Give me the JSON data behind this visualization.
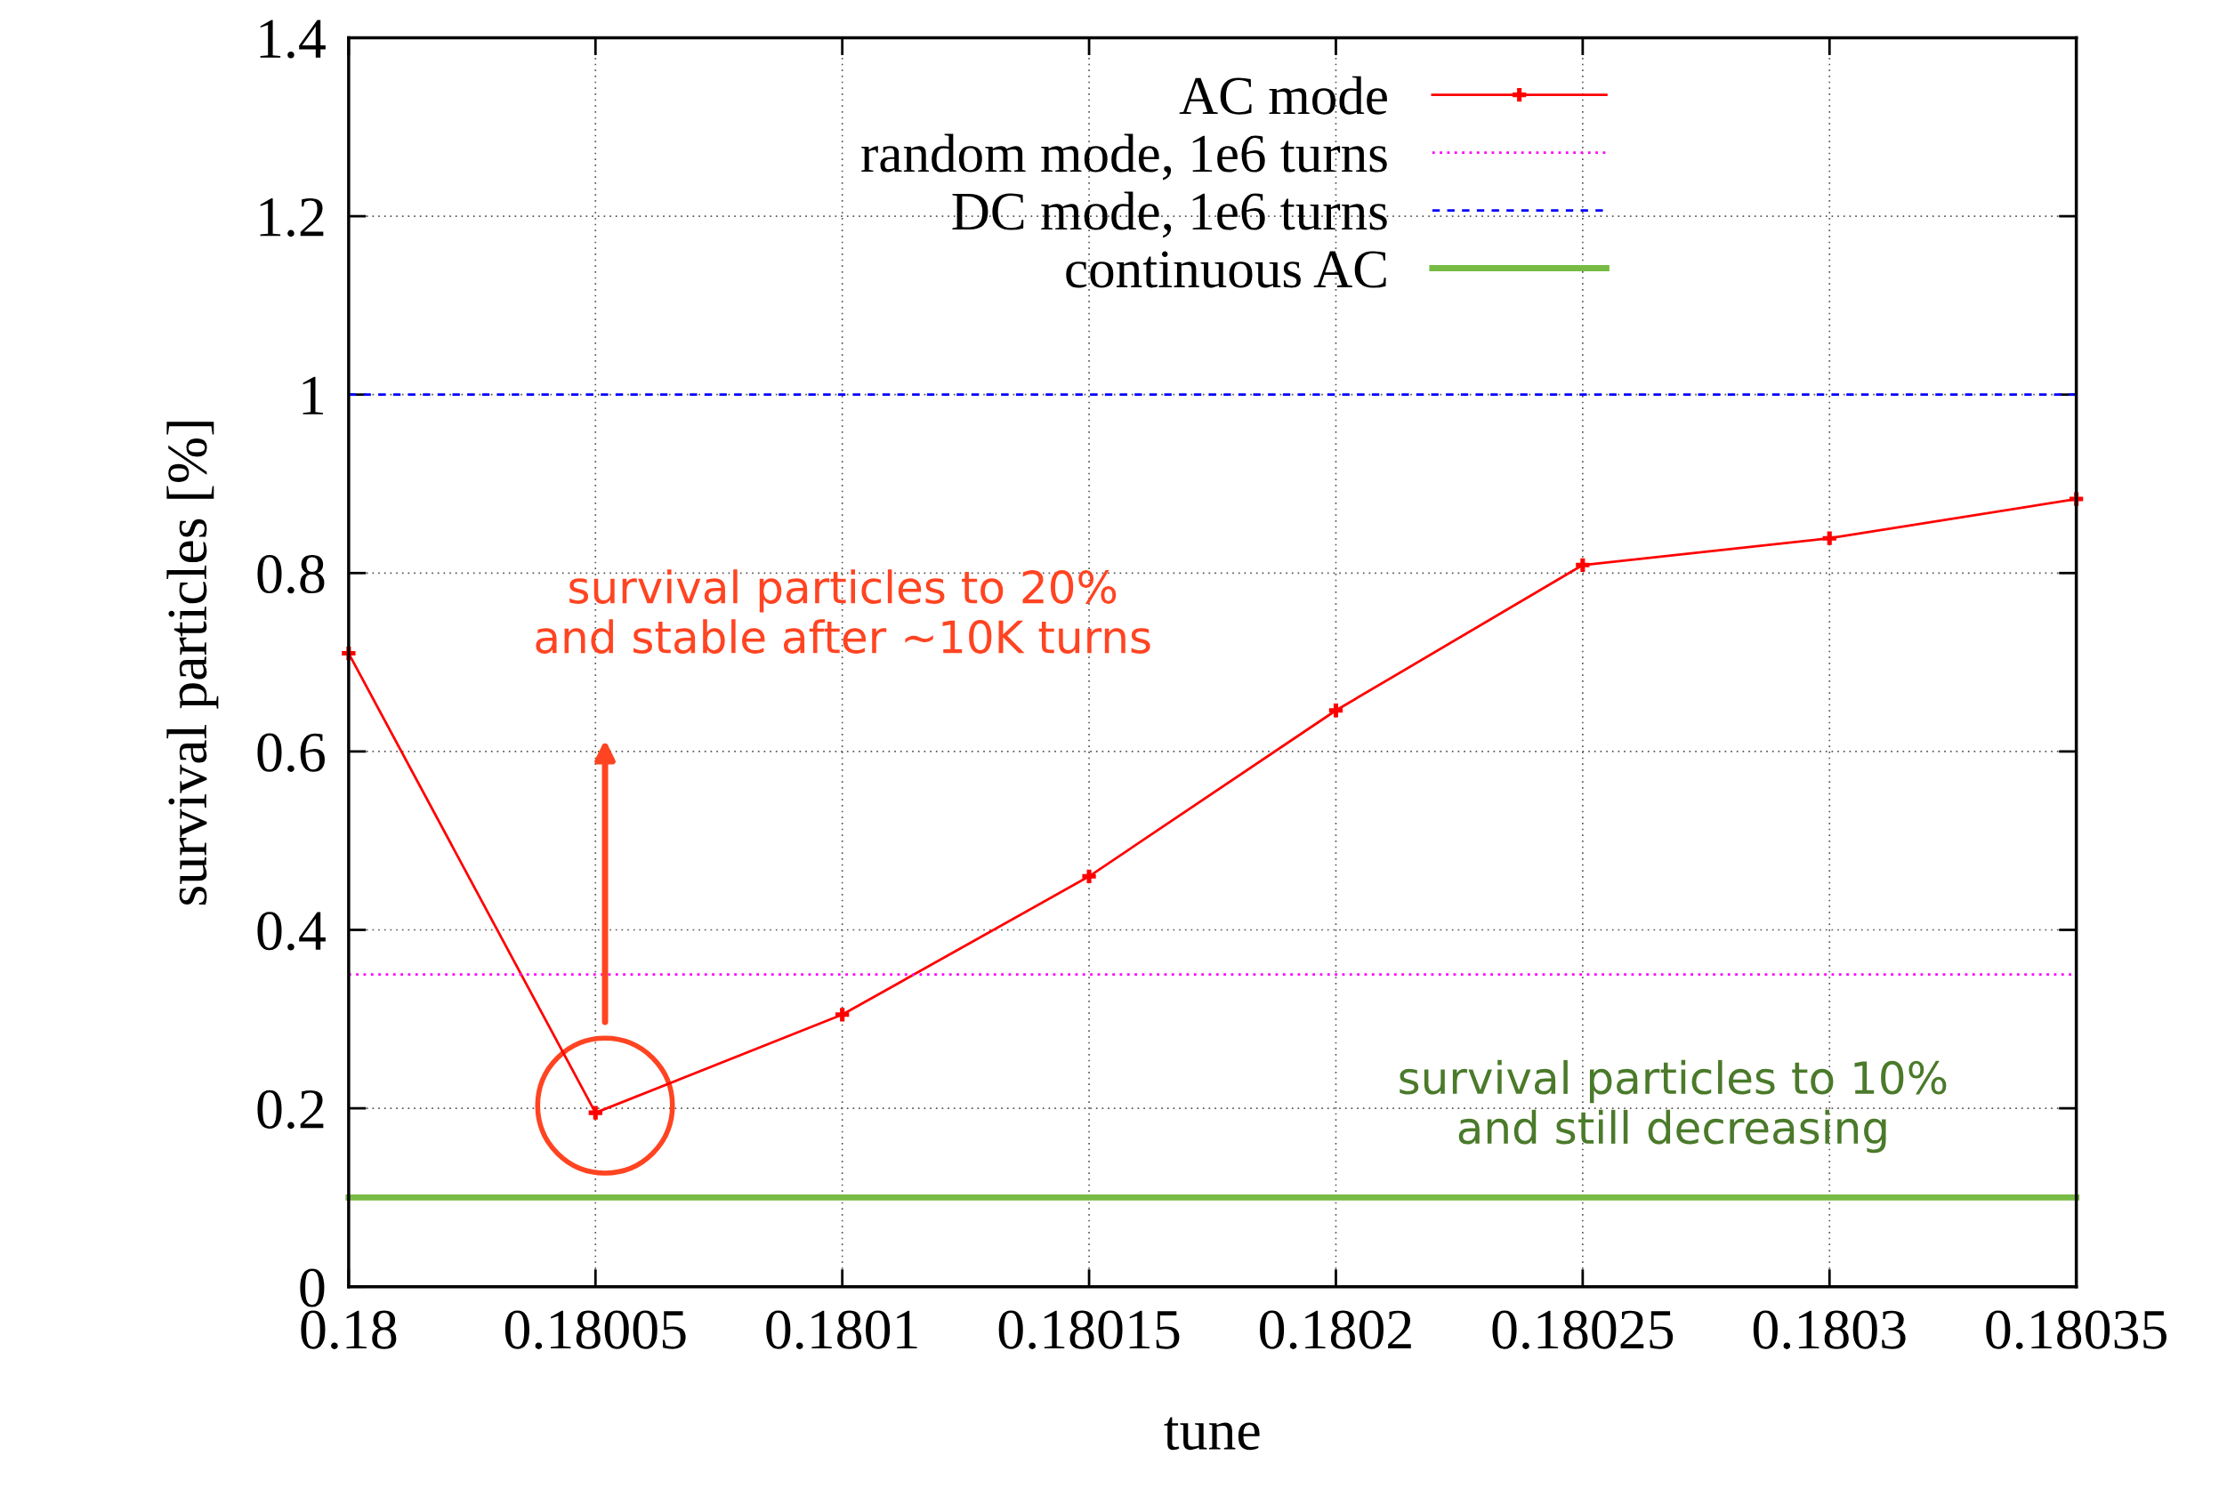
{
  "chart_data": {
    "type": "line",
    "xlabel": "tune",
    "ylabel": "survival particles [%]",
    "xlim": [
      0.18,
      0.18035
    ],
    "xticks": [
      0.18,
      0.18005,
      0.1801,
      0.18015,
      0.1802,
      0.18025,
      0.1803,
      0.18035
    ],
    "ylim": [
      0,
      1.4
    ],
    "yticks": [
      0,
      0.2,
      0.4,
      0.6,
      0.8,
      1,
      1.2,
      1.4
    ],
    "grid": true,
    "legend": "top right",
    "series": [
      {
        "name": "AC mode",
        "color": "#ff0000",
        "marker": "cross",
        "line_style": "solid",
        "x": [
          0.18,
          0.18005,
          0.1801,
          0.18015,
          0.1802,
          0.18025,
          0.1803,
          0.18035
        ],
        "values": [
          0.71,
          0.195,
          0.305,
          0.46,
          0.646,
          0.809,
          0.839,
          0.883
        ]
      },
      {
        "name": "random mode, 1e6 turns",
        "color": "#ff00ff",
        "marker": "none",
        "line_style": "dotted",
        "x": [
          0.18,
          0.18035
        ],
        "values": [
          0.35,
          0.35
        ]
      },
      {
        "name": "DC mode, 1e6 turns",
        "color": "#0000ff",
        "marker": "none",
        "line_style": "dashed",
        "x": [
          0.18,
          0.18035
        ],
        "values": [
          1,
          1
        ]
      },
      {
        "name": "continuous AC",
        "color": "#77bb44",
        "marker": "none",
        "line_style": "solid",
        "x": [
          0.18,
          0.18035
        ],
        "values": [
          0.1,
          0.1
        ]
      }
    ],
    "annotations": [
      "survival particles to 20%\nand stable after ~10K turns",
      {
        "text": "survival particles to 10%\nand still decreasing",
        "x": 0.18025,
        "y": 0.1
      }
    ]
  }
}
